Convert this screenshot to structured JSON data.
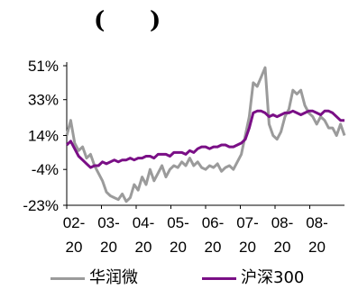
{
  "title": {
    "open": "(",
    "close": ")"
  },
  "chart_data": {
    "type": "line",
    "title": "",
    "xlabel": "",
    "ylabel": "",
    "ylim": [
      -23,
      51
    ],
    "yticks": [
      "51%",
      "33%",
      "14%",
      "-4%",
      "-23%"
    ],
    "ytick_values": [
      51,
      33,
      14,
      -4,
      -23
    ],
    "xticks": [
      {
        "top": "02-",
        "bottom": "20"
      },
      {
        "top": "03-",
        "bottom": "20"
      },
      {
        "top": "04-",
        "bottom": "20"
      },
      {
        "top": "05-",
        "bottom": "20"
      },
      {
        "top": "06-",
        "bottom": "20"
      },
      {
        "top": "07-",
        "bottom": "20"
      },
      {
        "top": "08-",
        "bottom": "20"
      },
      {
        "top": "08-",
        "bottom": "20"
      }
    ],
    "x": [
      0,
      1,
      2,
      3,
      4,
      5,
      6,
      7,
      8,
      9,
      10,
      11,
      12,
      13,
      14,
      15,
      16,
      17,
      18,
      19,
      20,
      21,
      22,
      23,
      24,
      25,
      26,
      27,
      28,
      29,
      30,
      31,
      32,
      33,
      34,
      35,
      36,
      37,
      38,
      39,
      40,
      41,
      42,
      43,
      44,
      45,
      46,
      47,
      48,
      49,
      50,
      51,
      52,
      53,
      54,
      55,
      56,
      57,
      58,
      59,
      60,
      61,
      62,
      63,
      64,
      65,
      66,
      67,
      68,
      69,
      70
    ],
    "grid": false,
    "legend_position": "bottom",
    "series": [
      {
        "name": "华润微",
        "color": "#9b9b9b",
        "values": [
          14,
          22,
          10,
          6,
          8,
          2,
          4,
          -2,
          -6,
          -10,
          -16,
          -18,
          -19,
          -20,
          -17,
          -21,
          -19,
          -12,
          -15,
          -8,
          -12,
          -4,
          -10,
          -6,
          -2,
          -8,
          -4,
          -2,
          -3,
          0,
          -2,
          2,
          -2,
          0,
          -3,
          -4,
          -2,
          -3,
          -1,
          -5,
          -3,
          -2,
          -4,
          0,
          4,
          14,
          24,
          42,
          40,
          45,
          50,
          20,
          14,
          12,
          16,
          24,
          28,
          38,
          36,
          38,
          30,
          26,
          24,
          20,
          24,
          22,
          18,
          18,
          14,
          20,
          14
        ]
      },
      {
        "name": "沪深300",
        "color": "#7a0f86",
        "values": [
          9,
          11,
          7,
          3,
          1,
          -1,
          -3,
          -2,
          -2,
          0,
          -1,
          0,
          1,
          0,
          1,
          1,
          2,
          1,
          2,
          2,
          3,
          3,
          2,
          4,
          4,
          4,
          3,
          5,
          5,
          5,
          4,
          6,
          5,
          7,
          8,
          8,
          7,
          8,
          8,
          9,
          9,
          8,
          8,
          9,
          10,
          12,
          18,
          26,
          27,
          27,
          26,
          24,
          25,
          24,
          25,
          26,
          26,
          27,
          26,
          25,
          26,
          27,
          27,
          26,
          25,
          27,
          27,
          26,
          24,
          22,
          22
        ]
      }
    ]
  }
}
